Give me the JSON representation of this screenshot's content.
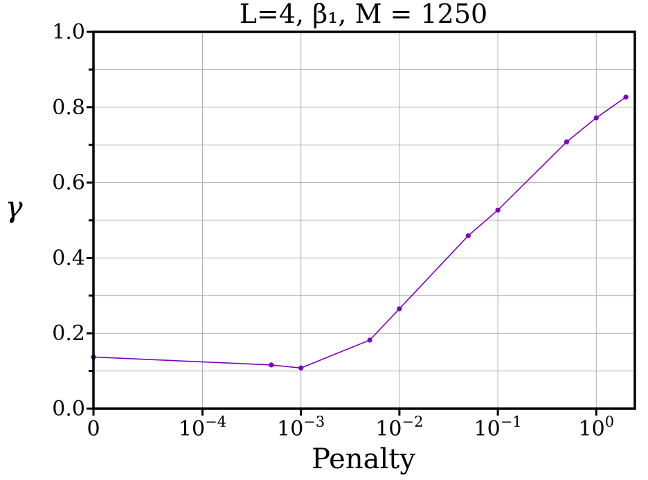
{
  "chart_data": {
    "type": "line",
    "title": "L=4, β₁, M = 1250",
    "xlabel": "Penalty",
    "ylabel": "γ",
    "xscale": "symlog",
    "xlim": [
      0,
      2.5
    ],
    "ylim": [
      0.0,
      1.0
    ],
    "grid": true,
    "x_ticks": [
      {
        "value": 0,
        "label": "0",
        "sup": ""
      },
      {
        "value": 0.0001,
        "label": "10",
        "sup": "−4"
      },
      {
        "value": 0.001,
        "label": "10",
        "sup": "−3"
      },
      {
        "value": 0.01,
        "label": "10",
        "sup": "−2"
      },
      {
        "value": 0.1,
        "label": "10",
        "sup": "−1"
      },
      {
        "value": 1,
        "label": "10",
        "sup": "0"
      }
    ],
    "y_ticks": [
      "0.0",
      "0.2",
      "0.4",
      "0.6",
      "0.8",
      "1.0"
    ],
    "series": [
      {
        "color": "#7b00c0",
        "x": [
          0,
          0.0005,
          0.001,
          0.005,
          0.01,
          0.05,
          0.1,
          0.5,
          1,
          2
        ],
        "y": [
          0.137,
          0.116,
          0.108,
          0.182,
          0.265,
          0.459,
          0.527,
          0.708,
          0.772,
          0.827
        ]
      }
    ]
  }
}
